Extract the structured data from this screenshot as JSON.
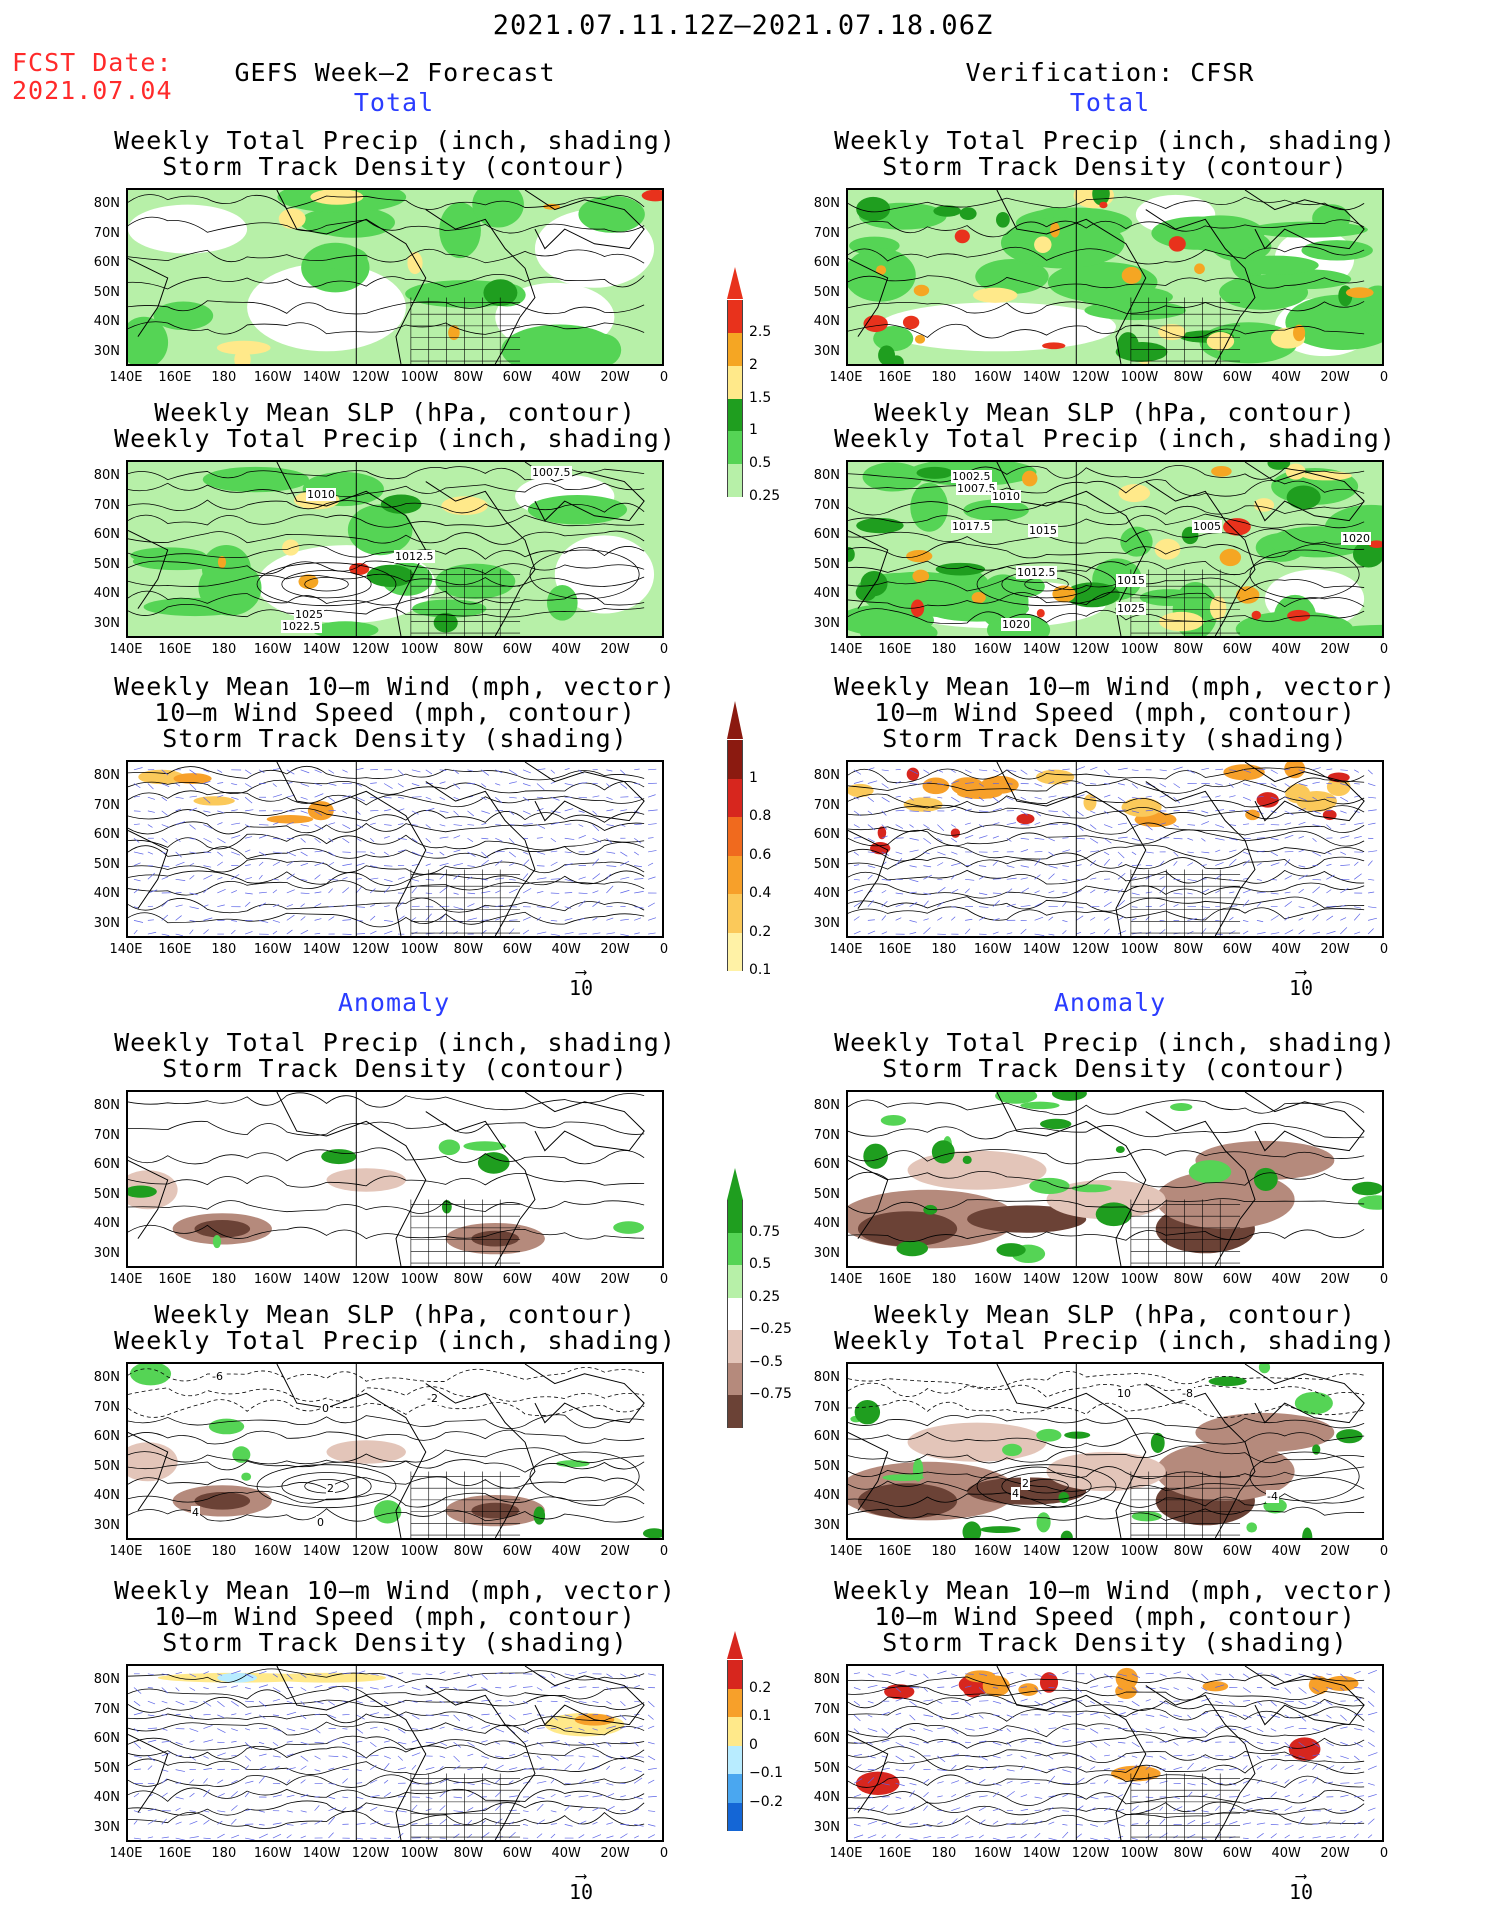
{
  "header": {
    "date_range": "2021.07.11.12Z–2021.07.18.06Z",
    "fcst_label": "FCST Date:",
    "fcst_date": "2021.07.04",
    "left_title": "GEFS Week–2 Forecast",
    "right_title": "Verification: CFSR"
  },
  "sections": {
    "total": "Total",
    "anomaly": "Anomaly"
  },
  "panel_titles": {
    "precip_storm": [
      "Weekly Total Precip (inch, shading)",
      "Storm Track Density (contour)"
    ],
    "slp_precip": [
      "Weekly Mean SLP (hPa, contour)",
      "Weekly Total Precip (inch, shading)"
    ],
    "wind_storm": [
      "Weekly Mean 10–m Wind (mph, vector)",
      "10–m Wind Speed (mph, contour)",
      "Storm Track Density (shading)"
    ]
  },
  "axes": {
    "lat_labels": [
      "80N",
      "70N",
      "60N",
      "50N",
      "40N",
      "30N"
    ],
    "lon_labels": [
      "140E",
      "160E",
      "180",
      "160W",
      "140W",
      "120W",
      "100W",
      "80W",
      "60W",
      "40W",
      "20W",
      "0"
    ]
  },
  "vector_reference": "10",
  "colorbars": {
    "total_precip": {
      "labels": [
        "2.5",
        "2",
        "1.5",
        "1",
        "0.5",
        "0.25"
      ],
      "colors": [
        "#e8321c",
        "#f5a623",
        "#ffe98a",
        "#1f9e1f",
        "#55d455",
        "#b7f0a8"
      ]
    },
    "total_storm": {
      "labels": [
        "1",
        "0.8",
        "0.6",
        "0.4",
        "0.2",
        "0.1"
      ],
      "colors": [
        "#8b1a10",
        "#d7261e",
        "#f06a1e",
        "#f7a02a",
        "#fbc95a",
        "#fff2a6"
      ]
    },
    "anom_precip": {
      "labels": [
        "0.75",
        "0.5",
        "0.25",
        "−0.25",
        "−0.5",
        "−0.75"
      ],
      "colors": [
        "#1f9e1f",
        "#55d455",
        "#b7f0a8",
        "#ffffff",
        "#e3c5b9",
        "#b58a7c",
        "#6b4236"
      ]
    },
    "anom_storm": {
      "labels": [
        "0.2",
        "0.1",
        "0",
        "−0.1",
        "−0.2"
      ],
      "colors": [
        "#d7261e",
        "#f7a02a",
        "#ffe98a",
        "#b8ecff",
        "#4aa7f0",
        "#1466d6"
      ]
    }
  },
  "contour_labels": {
    "left_slp_total": [
      "1007.5",
      "1010",
      "1012.5",
      "1025",
      "1022.5"
    ],
    "right_slp_total": [
      "1002.5",
      "1007.5",
      "1010",
      "1017.5",
      "1015",
      "1005",
      "1020",
      "1012.5",
      "1015",
      "1025",
      "1020"
    ],
    "left_slp_anom": [
      "-6",
      "-2",
      "0",
      "4",
      "2",
      "0"
    ],
    "right_slp_anom": [
      "10",
      "-8",
      "4",
      "2",
      "-4"
    ]
  }
}
